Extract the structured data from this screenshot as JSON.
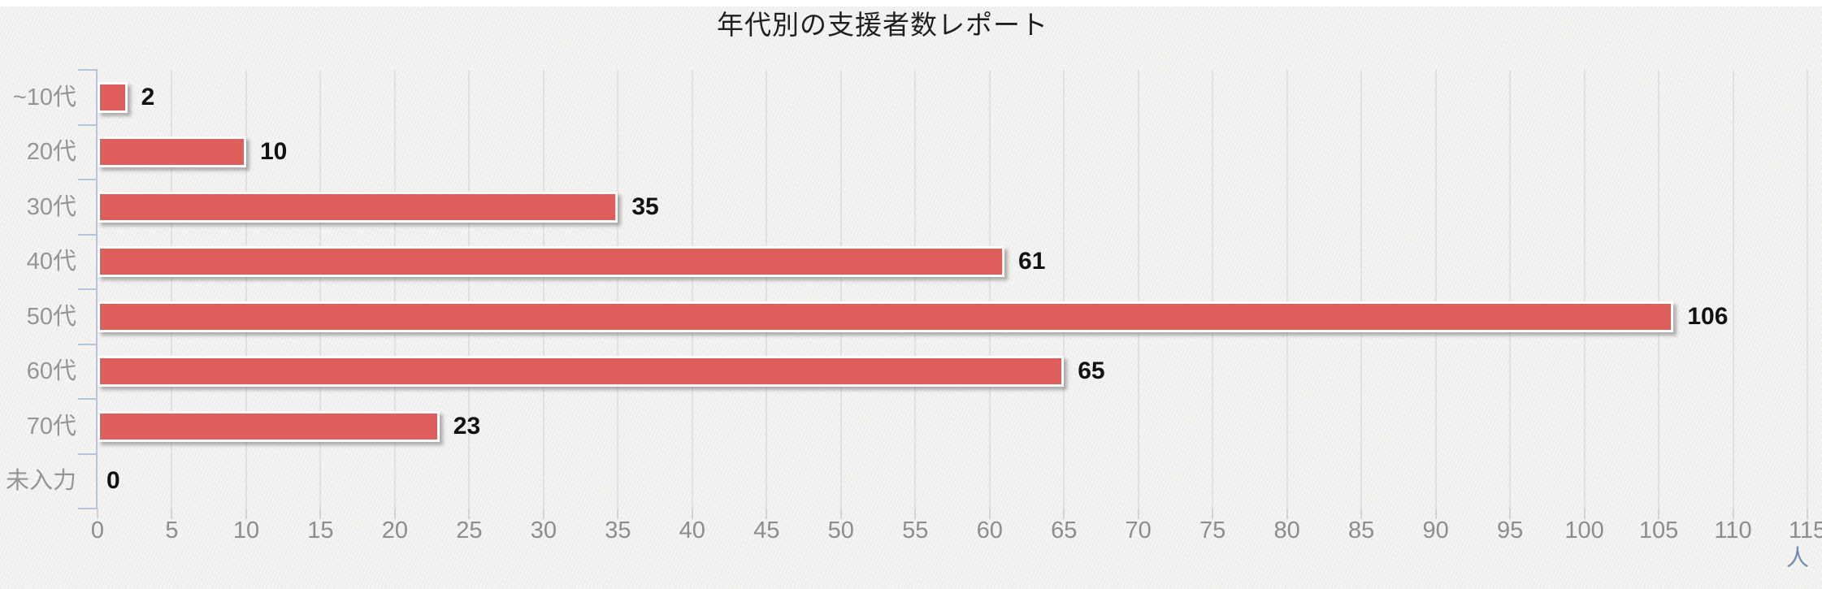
{
  "chart_data": {
    "type": "bar",
    "orientation": "horizontal",
    "title": "年代別の支援者数レポート",
    "categories": [
      "~10代",
      "20代",
      "30代",
      "40代",
      "50代",
      "60代",
      "70代",
      "未入力"
    ],
    "values": [
      2,
      10,
      35,
      61,
      106,
      65,
      23,
      0
    ],
    "xlabel": "人",
    "ylabel": "",
    "xlim": [
      0,
      115
    ],
    "x_tick_step": 5,
    "x_ticks": [
      0,
      5,
      10,
      15,
      20,
      25,
      30,
      35,
      40,
      45,
      50,
      55,
      60,
      65,
      70,
      75,
      80,
      85,
      90,
      95,
      100,
      105,
      110,
      115
    ],
    "grid": "vertical",
    "legend": "none",
    "colors": {
      "bar": "#dd5e5b",
      "bar_border": "#ffffff",
      "y_axis": "#b5c3dc",
      "gridline": "#e2e1df",
      "tick_mark": "#d5d4d2",
      "tick_label": "#8d8d8d",
      "category_label": "#959595",
      "value_label": "#111111",
      "unit_label": "#6d8cb8",
      "title": "#1f1f1f",
      "background": "#f1f0ee"
    }
  }
}
